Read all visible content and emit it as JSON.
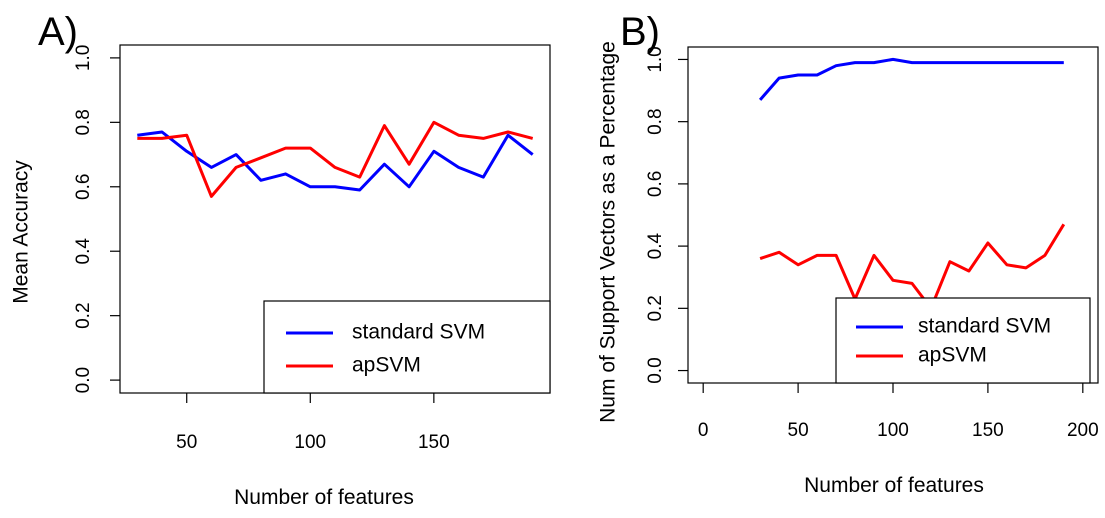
{
  "chart_data": [
    {
      "panel_label": "A)",
      "type": "line",
      "xlabel": "Number of features",
      "ylabel": "Mean Accuracy",
      "xlim": [
        23,
        197
      ],
      "ylim": [
        -0.04,
        1.04
      ],
      "xticks": [
        50,
        100,
        150
      ],
      "yticks": [
        0.0,
        0.2,
        0.4,
        0.6,
        0.8,
        1.0
      ],
      "ytick_labels": [
        "0.0",
        "0.2",
        "0.4",
        "0.6",
        "0.8",
        "1.0"
      ],
      "grid": false,
      "legend_position": "bottom-right",
      "x": [
        30,
        40,
        50,
        60,
        70,
        80,
        90,
        100,
        110,
        120,
        130,
        140,
        150,
        160,
        170,
        180,
        190
      ],
      "series": [
        {
          "name": "standard SVM",
          "color": "#0000ff",
          "values": [
            0.76,
            0.77,
            0.71,
            0.66,
            0.7,
            0.62,
            0.64,
            0.6,
            0.6,
            0.59,
            0.67,
            0.6,
            0.71,
            0.66,
            0.63,
            0.76,
            0.7
          ]
        },
        {
          "name": "apSVM",
          "color": "#ff0000",
          "values": [
            0.75,
            0.75,
            0.76,
            0.57,
            0.66,
            0.69,
            0.72,
            0.72,
            0.66,
            0.63,
            0.79,
            0.67,
            0.8,
            0.76,
            0.75,
            0.77,
            0.75
          ]
        }
      ]
    },
    {
      "panel_label": "B)",
      "type": "line",
      "xlabel": "Number of features",
      "ylabel": "Num of Support Vectors as a Percentage",
      "xlim": [
        -8,
        208
      ],
      "ylim": [
        -0.04,
        1.04
      ],
      "xticks": [
        0,
        50,
        100,
        150,
        200
      ],
      "yticks": [
        0.0,
        0.2,
        0.4,
        0.6,
        0.8,
        1.0
      ],
      "ytick_labels": [
        "0.0",
        "0.2",
        "0.4",
        "0.6",
        "0.8",
        "1.0"
      ],
      "grid": false,
      "legend_position": "bottom-right",
      "x": [
        30,
        40,
        50,
        60,
        70,
        80,
        90,
        100,
        110,
        120,
        130,
        140,
        150,
        160,
        170,
        180,
        190
      ],
      "series": [
        {
          "name": "standard SVM",
          "color": "#0000ff",
          "values": [
            0.87,
            0.94,
            0.95,
            0.95,
            0.98,
            0.99,
            0.99,
            1.0,
            0.99,
            0.99,
            0.99,
            0.99,
            0.99,
            0.99,
            0.99,
            0.99,
            0.99
          ]
        },
        {
          "name": "apSVM",
          "color": "#ff0000",
          "values": [
            0.36,
            0.38,
            0.34,
            0.37,
            0.37,
            0.23,
            0.37,
            0.29,
            0.28,
            0.2,
            0.35,
            0.32,
            0.41,
            0.34,
            0.33,
            0.37,
            0.47
          ]
        }
      ]
    }
  ]
}
